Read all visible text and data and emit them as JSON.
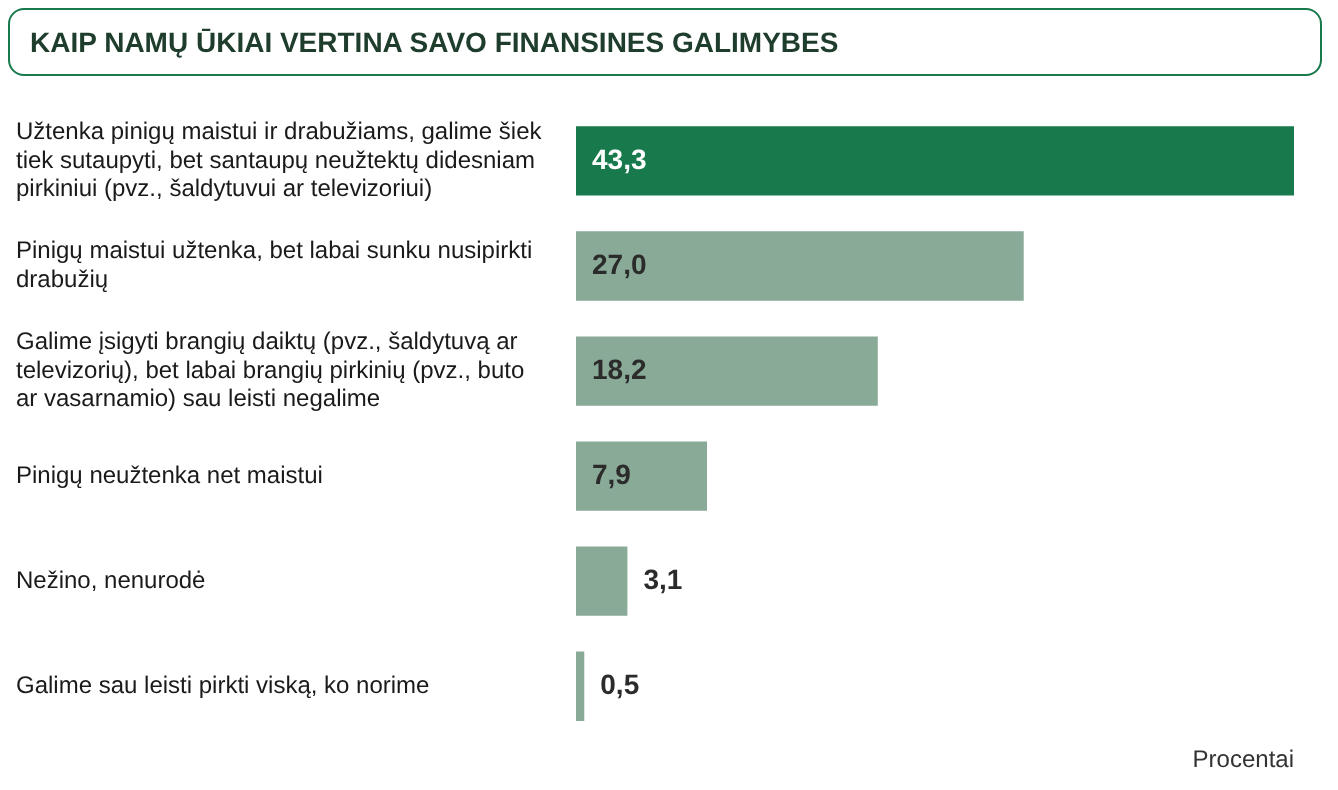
{
  "chart_data": {
    "type": "bar",
    "orientation": "horizontal",
    "title": "KAIP NAMŲ ŪKIAI VERTINA SAVO FINANSINES GALIMYBES",
    "categories": [
      "Užtenka pinigų maistui ir drabužiams, galime šiek tiek sutaupyti, bet santaupų neužtektų didesniam pirkiniui (pvz., šaldytuvui ar televizoriui)",
      "Pinigų maistui užtenka, bet labai sunku nusipirkti drabužių",
      "Galime įsigyti brangių daiktų (pvz., šaldytuvą ar televizorių), bet labai brangių pirkinių (pvz., buto ar vasarnamio) sau leisti negalime",
      "Pinigų neužtenka net maistui",
      "Nežino, nenurodė",
      "Galime sau leisti pirkti viską, ko norime"
    ],
    "values": [
      43.3,
      27.0,
      18.2,
      7.9,
      3.1,
      0.5
    ],
    "value_labels": [
      "43,3",
      "27,0",
      "18,2",
      "7,9",
      "3,1",
      "0,5"
    ],
    "colors": [
      "#187a4c",
      "#8aaa98",
      "#8aaa98",
      "#8aaa98",
      "#8aaa98",
      "#8aaa98"
    ],
    "annotations": [
      "Procentai"
    ]
  }
}
